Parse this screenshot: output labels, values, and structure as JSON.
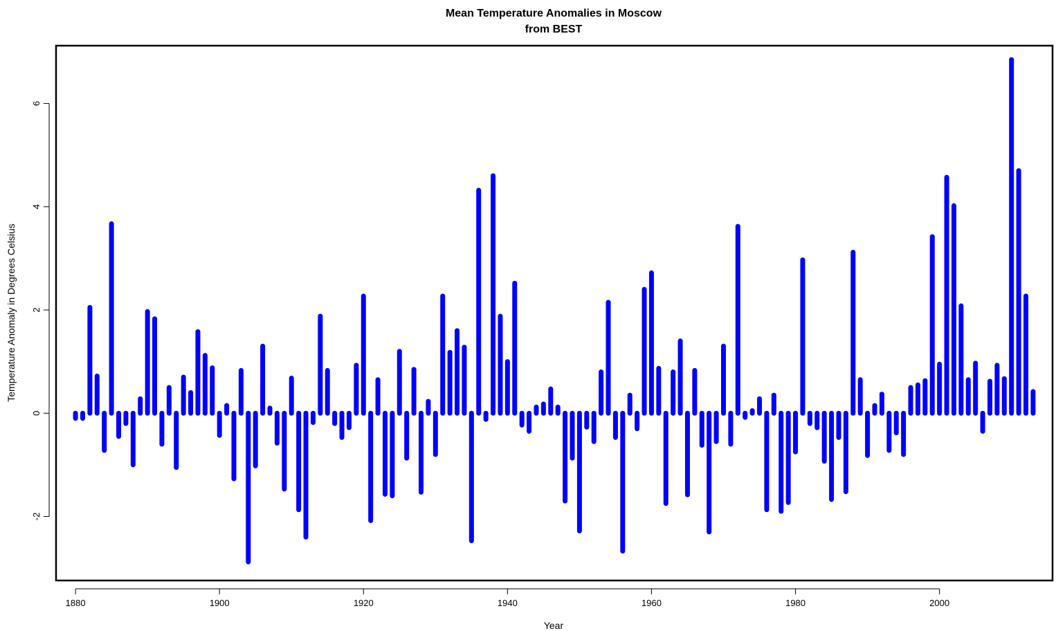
{
  "chart_data": {
    "type": "bar",
    "title": "Mean Temperature Anomalies in Moscow",
    "subtitle": "from BEST",
    "xlabel": "Year",
    "ylabel": "Temperature Anomaly in Degrees Celsius",
    "xlim": [
      1877.3,
      2015.7
    ],
    "ylim": [
      -3.24,
      7.12
    ],
    "x_ticks": [
      1880,
      1900,
      1920,
      1940,
      1960,
      1980,
      2000
    ],
    "y_ticks": [
      -2,
      0,
      2,
      4,
      6
    ],
    "bar_color": "#0000ff",
    "grid": false,
    "legend": "none",
    "x": [
      1880,
      1881,
      1882,
      1883,
      1884,
      1885,
      1886,
      1887,
      1888,
      1889,
      1890,
      1891,
      1892,
      1893,
      1894,
      1895,
      1896,
      1897,
      1898,
      1899,
      1900,
      1901,
      1902,
      1903,
      1904,
      1905,
      1906,
      1907,
      1908,
      1909,
      1910,
      1911,
      1912,
      1913,
      1914,
      1915,
      1916,
      1917,
      1918,
      1919,
      1920,
      1921,
      1922,
      1923,
      1924,
      1925,
      1926,
      1927,
      1928,
      1929,
      1930,
      1931,
      1932,
      1933,
      1934,
      1935,
      1936,
      1937,
      1938,
      1939,
      1940,
      1941,
      1942,
      1943,
      1944,
      1945,
      1946,
      1947,
      1948,
      1949,
      1950,
      1951,
      1952,
      1953,
      1954,
      1955,
      1956,
      1957,
      1958,
      1959,
      1960,
      1961,
      1962,
      1963,
      1964,
      1965,
      1966,
      1967,
      1968,
      1969,
      1970,
      1971,
      1972,
      1973,
      1974,
      1975,
      1976,
      1977,
      1978,
      1979,
      1980,
      1981,
      1982,
      1983,
      1984,
      1985,
      1986,
      1987,
      1988,
      1989,
      1990,
      1991,
      1992,
      1993,
      1994,
      1995,
      1996,
      1997,
      1998,
      1999,
      2000,
      2001,
      2002,
      2003,
      2004,
      2005,
      2006,
      2007,
      2008,
      2009,
      2010,
      2011,
      2012,
      2013
    ],
    "values": [
      -0.1,
      -0.1,
      2.05,
      0.72,
      -0.72,
      3.67,
      -0.45,
      -0.2,
      -1.0,
      0.28,
      1.97,
      1.83,
      -0.6,
      0.5,
      -1.05,
      0.7,
      0.4,
      1.58,
      1.12,
      0.88,
      -0.43,
      0.15,
      -1.27,
      0.83,
      -2.88,
      -1.02,
      1.3,
      0.1,
      -0.58,
      -1.47,
      0.68,
      -1.87,
      -2.4,
      -0.18,
      1.88,
      0.83,
      -0.2,
      -0.47,
      -0.28,
      0.93,
      2.27,
      -2.08,
      0.65,
      -1.57,
      -1.6,
      1.2,
      -0.87,
      0.85,
      -1.53,
      0.23,
      -0.8,
      2.27,
      1.18,
      1.6,
      1.28,
      -2.47,
      4.32,
      -0.12,
      4.6,
      1.88,
      1.0,
      2.52,
      -0.23,
      -0.35,
      0.12,
      0.18,
      0.47,
      0.12,
      -1.7,
      -0.87,
      -2.28,
      -0.27,
      -0.55,
      0.8,
      2.15,
      -0.47,
      -2.67,
      0.35,
      -0.3,
      2.4,
      2.72,
      0.87,
      -1.75,
      0.8,
      1.4,
      -1.58,
      0.83,
      -0.62,
      -2.3,
      -0.55,
      1.3,
      -0.6,
      3.62,
      -0.08,
      0.05,
      0.28,
      -1.87,
      0.35,
      -1.9,
      -1.73,
      -0.75,
      2.97,
      -0.2,
      -0.28,
      -0.93,
      -1.67,
      -0.47,
      -1.52,
      3.12,
      0.65,
      -0.82,
      0.15,
      0.37,
      -0.72,
      -0.38,
      -0.8,
      0.5,
      0.55,
      0.63,
      3.42,
      0.95,
      4.57,
      4.02,
      2.08,
      0.65,
      0.97,
      -0.35,
      0.62,
      0.93,
      0.67,
      6.85,
      4.7,
      2.27,
      0.42
    ]
  }
}
